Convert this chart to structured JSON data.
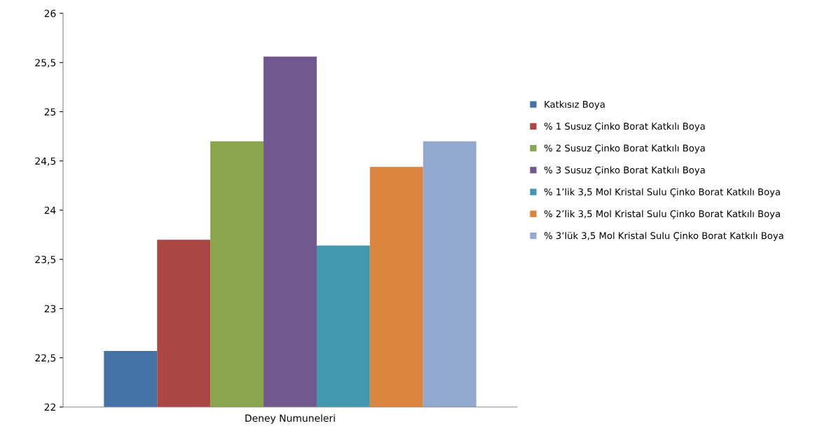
{
  "chart_data": {
    "type": "bar",
    "xlabel": "Deney Numuneleri",
    "categories": [
      null
    ],
    "series": [
      {
        "name": "Katkısız Boya",
        "color": "#4572a7",
        "values": [
          22.57
        ]
      },
      {
        "name": "% 1 Susuz Çinko Borat Katkılı Boya",
        "color": "#aa4643",
        "values": [
          23.7
        ]
      },
      {
        "name": "% 2 Susuz Çinko Borat Katkılı Boya",
        "color": "#89a54e",
        "values": [
          24.7
        ]
      },
      {
        "name": "% 3 Susuz Çinko Borat Katkılı Boya",
        "color": "#71588f",
        "values": [
          25.56
        ]
      },
      {
        "name": "% 1’lik 3,5 Mol Kristal Sulu Çinko Borat Katkılı Boya",
        "color": "#4198af",
        "values": [
          23.64
        ]
      },
      {
        "name": "% 2’lik 3,5 Mol Kristal Sulu Çinko Borat Katkılı Boya",
        "color": "#db843d",
        "values": [
          24.44
        ]
      },
      {
        "name": "% 3’lük 3,5 Mol Kristal Sulu Çinko Borat Katkılı Boya",
        "color": "#93a9cf",
        "values": [
          24.7
        ]
      }
    ],
    "ylim": [
      22,
      26
    ],
    "yticks": [
      22,
      {
        "value": 22.5,
        "label": "22,5"
      },
      23,
      {
        "value": 23.5,
        "label": "23,5"
      },
      24,
      {
        "value": 24.5,
        "label": "24,5"
      },
      25,
      {
        "value": 25.5,
        "label": "25,5"
      },
      26
    ],
    "grid": false,
    "legend": "right"
  }
}
